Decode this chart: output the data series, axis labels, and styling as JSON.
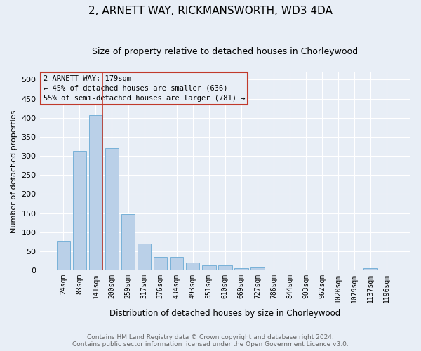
{
  "title_line1": "2, ARNETT WAY, RICKMANSWORTH, WD3 4DA",
  "title_line2": "Size of property relative to detached houses in Chorleywood",
  "xlabel": "Distribution of detached houses by size in Chorleywood",
  "ylabel": "Number of detached properties",
  "bar_labels": [
    "24sqm",
    "83sqm",
    "141sqm",
    "200sqm",
    "259sqm",
    "317sqm",
    "376sqm",
    "434sqm",
    "493sqm",
    "551sqm",
    "610sqm",
    "669sqm",
    "727sqm",
    "786sqm",
    "844sqm",
    "903sqm",
    "962sqm",
    "1020sqm",
    "1079sqm",
    "1137sqm",
    "1196sqm"
  ],
  "bar_values": [
    75,
    313,
    406,
    320,
    148,
    70,
    36,
    36,
    20,
    14,
    13,
    5,
    8,
    2,
    2,
    2,
    0,
    0,
    0,
    5,
    0
  ],
  "bar_color": "#bad0e8",
  "bar_edge_color": "#6aaad4",
  "annotation_line1": "2 ARNETT WAY: 179sqm",
  "annotation_line2": "← 45% of detached houses are smaller (636)",
  "annotation_line3": "55% of semi-detached houses are larger (781) →",
  "vline_color": "#c0392b",
  "annotation_box_edgecolor": "#c0392b",
  "ylim": [
    0,
    520
  ],
  "yticks": [
    0,
    50,
    100,
    150,
    200,
    250,
    300,
    350,
    400,
    450,
    500
  ],
  "footer_line1": "Contains HM Land Registry data © Crown copyright and database right 2024.",
  "footer_line2": "Contains public sector information licensed under the Open Government Licence v3.0.",
  "bg_color": "#e8eef6",
  "grid_color": "#ffffff",
  "title1_fontsize": 11,
  "title2_fontsize": 9,
  "ylabel_fontsize": 8,
  "xlabel_fontsize": 8.5,
  "tick_fontsize": 7,
  "annotation_fontsize": 7.5,
  "footer_fontsize": 6.5,
  "footer_color": "#666666"
}
